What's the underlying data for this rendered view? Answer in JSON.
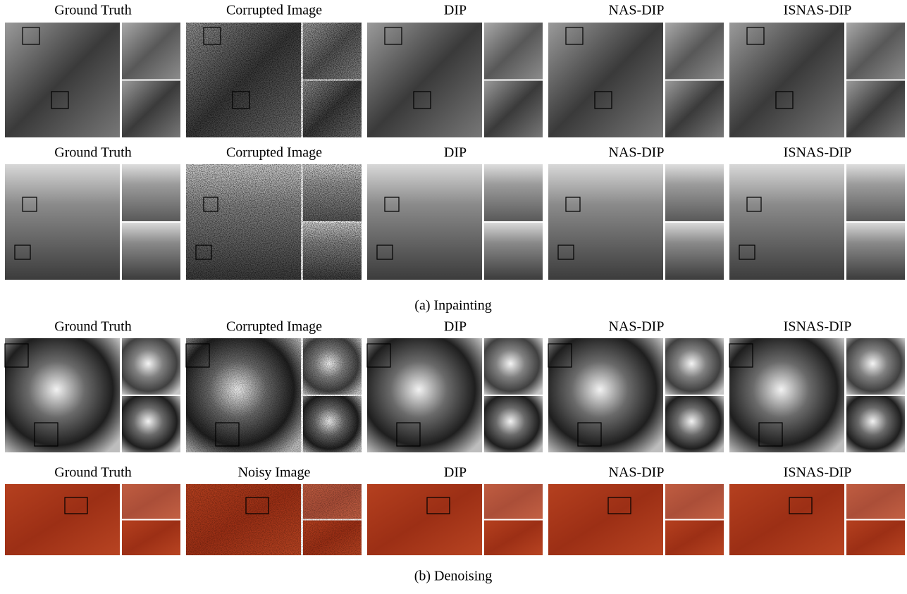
{
  "sections": [
    {
      "caption": "(a) Inpainting",
      "rows": [
        {
          "labels": [
            "Ground Truth",
            "Corrupted Image",
            "DIP",
            "NAS-DIP",
            "ISNAS-DIP"
          ]
        },
        {
          "labels": [
            "Ground Truth",
            "Corrupted Image",
            "DIP",
            "NAS-DIP",
            "ISNAS-DIP"
          ]
        }
      ]
    },
    {
      "caption": "(b) Denoising",
      "rows": [
        {
          "labels": [
            "Ground Truth",
            "Corrupted Image",
            "DIP",
            "NAS-DIP",
            "ISNAS-DIP"
          ]
        },
        {
          "labels": [
            "Ground Truth",
            "Noisy Image",
            "DIP",
            "NAS-DIP",
            "ISNAS-DIP"
          ]
        }
      ]
    }
  ]
}
